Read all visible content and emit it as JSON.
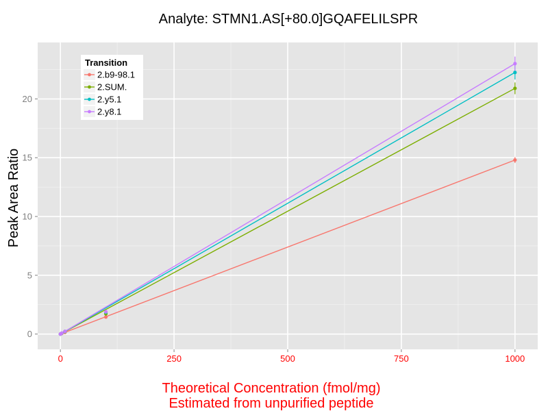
{
  "chart_data": {
    "type": "line",
    "title": "Analyte: STMN1.AS[+80.0]GQAFELILSPR",
    "xlabel": "Theoretical Concentration (fmol/mg)",
    "xlabel_line2": "Estimated from unpurified peptide",
    "ylabel": "Peak Area Ratio",
    "xlim": [
      -50,
      1050
    ],
    "ylim": [
      -1.3,
      24.8
    ],
    "x_ticks": [
      0,
      250,
      500,
      750,
      1000
    ],
    "y_ticks": [
      0,
      5,
      10,
      15,
      20
    ],
    "grid": true,
    "legend": {
      "title": "Transition",
      "position": "top-left"
    },
    "x": [
      0,
      1,
      3,
      10,
      100,
      1000
    ],
    "series": [
      {
        "name": "2.b9-98.1",
        "color": "#F8766D",
        "values": [
          0.0,
          0.02,
          0.05,
          0.15,
          1.45,
          14.8
        ],
        "fit": [
          0,
          14.8
        ],
        "error": [
          0,
          0,
          0,
          0,
          0.1,
          0.25
        ]
      },
      {
        "name": "2.SUM.",
        "color": "#7CAE00",
        "values": [
          0.0,
          0.03,
          0.07,
          0.2,
          1.72,
          20.9
        ],
        "fit": [
          0,
          20.9
        ],
        "error": [
          0,
          0,
          0,
          0,
          0.15,
          0.5
        ]
      },
      {
        "name": "2.y5.1",
        "color": "#00BFC4",
        "values": [
          0.0,
          0.03,
          0.08,
          0.22,
          1.85,
          22.25
        ],
        "fit": [
          0,
          22.25
        ],
        "error": [
          0,
          0,
          0,
          0,
          0.15,
          0.6
        ]
      },
      {
        "name": "2.y8.1",
        "color": "#C77CFF",
        "values": [
          0.0,
          0.03,
          0.08,
          0.23,
          1.9,
          23.0
        ],
        "fit": [
          0,
          23.0
        ],
        "error": [
          0,
          0,
          0,
          0,
          0.15,
          0.6
        ]
      }
    ],
    "colors": {
      "panel": "#E5E5E5",
      "grid_major": "#FFFFFF",
      "x_axis_text": "#FF0000",
      "y_axis_text": "#7F7F7F",
      "xlabel_text": "#FF0000"
    }
  }
}
